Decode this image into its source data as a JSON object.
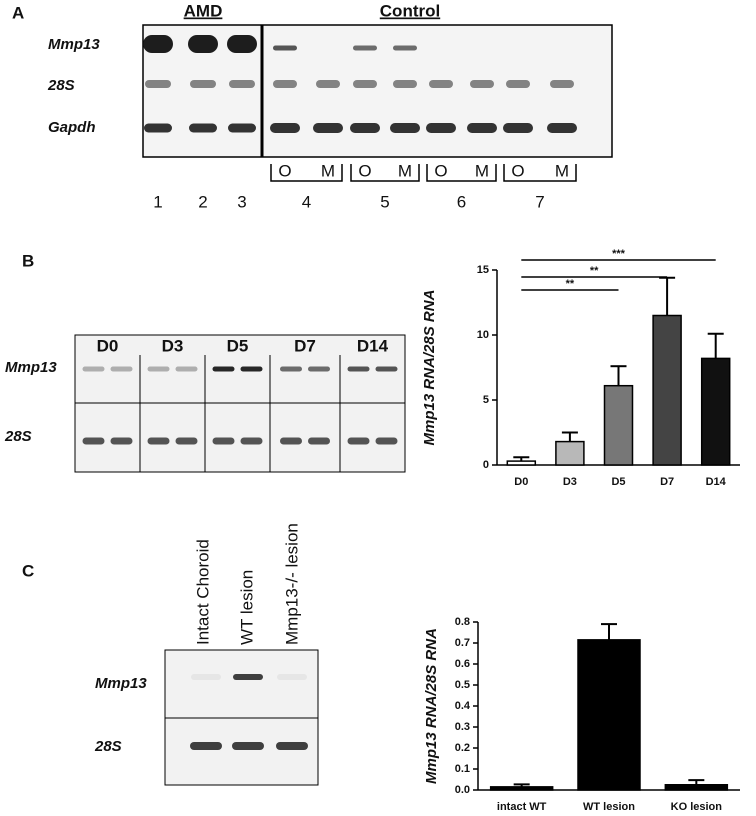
{
  "panel_labels": [
    "A",
    "B",
    "C"
  ],
  "panel_a": {
    "groups": [
      "AMD",
      "Control"
    ],
    "rows": [
      "Mmp13",
      "28S",
      "Gapdh"
    ],
    "lanes": [
      "1",
      "2",
      "3",
      "4",
      "5",
      "6",
      "7"
    ],
    "sublanes": [
      "O",
      "M"
    ]
  },
  "panel_b": {
    "lanes": [
      "D0",
      "D3",
      "D5",
      "D7",
      "D14"
    ],
    "rows": [
      "Mmp13",
      "28S"
    ]
  },
  "panel_c": {
    "lanes": [
      "Intact Choroid",
      "WT lesion",
      "Mmp13-/- lesion"
    ],
    "rows": [
      "Mmp13",
      "28S"
    ]
  },
  "chart_data": [
    {
      "type": "bar",
      "y_label": "Mmp13 RNA/28S RNA",
      "categories": [
        "D0",
        "D3",
        "D5",
        "D7",
        "D14"
      ],
      "values": [
        0.3,
        1.8,
        6.1,
        11.5,
        8.2
      ],
      "errors": [
        0.3,
        0.7,
        1.5,
        2.9,
        1.9
      ],
      "colors": [
        "#ffffff",
        "#b8b8b8",
        "#777777",
        "#444444",
        "#111111"
      ],
      "ylim": [
        0,
        15
      ],
      "yticks": [
        0,
        5,
        10,
        15
      ],
      "brackets": [
        {
          "label": "**",
          "from": "D0",
          "to": "D5"
        },
        {
          "label": "**",
          "from": "D0",
          "to": "D7"
        },
        {
          "label": "***",
          "from": "D0",
          "to": "D14"
        }
      ]
    },
    {
      "type": "bar",
      "y_label": "Mmp13 RNA/28S RNA",
      "categories": [
        "intact WT",
        "WT lesion",
        "KO lesion"
      ],
      "values": [
        0.015,
        0.715,
        0.025
      ],
      "errors": [
        0.012,
        0.075,
        0.022
      ],
      "colors": [
        "#000000",
        "#000000",
        "#000000"
      ],
      "ylim": [
        0,
        0.8
      ],
      "yticks": [
        {
          "value": 0,
          "label": "0.0"
        },
        0.1,
        0.2,
        0.3,
        0.4,
        0.5,
        0.6,
        0.7,
        0.8
      ]
    }
  ]
}
